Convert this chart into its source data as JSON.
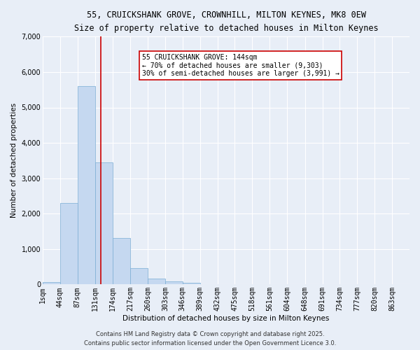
{
  "title1": "55, CRUICKSHANK GROVE, CROWNHILL, MILTON KEYNES, MK8 0EW",
  "title2": "Size of property relative to detached houses in Milton Keynes",
  "xlabel": "Distribution of detached houses by size in Milton Keynes",
  "ylabel": "Number of detached properties",
  "bar_color": "#c5d8f0",
  "bar_edge_color": "#7aadd4",
  "background_color": "#e8eef7",
  "grid_color": "#ffffff",
  "bin_labels": [
    "1sqm",
    "44sqm",
    "87sqm",
    "131sqm",
    "174sqm",
    "217sqm",
    "260sqm",
    "303sqm",
    "346sqm",
    "389sqm",
    "432sqm",
    "475sqm",
    "518sqm",
    "561sqm",
    "604sqm",
    "648sqm",
    "691sqm",
    "734sqm",
    "777sqm",
    "820sqm",
    "863sqm"
  ],
  "bin_edges": [
    1,
    44,
    87,
    131,
    174,
    217,
    260,
    303,
    346,
    389,
    432,
    475,
    518,
    561,
    604,
    648,
    691,
    734,
    777,
    820,
    863
  ],
  "bar_heights": [
    75,
    2300,
    5600,
    3450,
    1320,
    470,
    160,
    80,
    40,
    5,
    0,
    0,
    0,
    0,
    0,
    0,
    0,
    0,
    0,
    0
  ],
  "ylim": [
    0,
    7000
  ],
  "yticks": [
    0,
    1000,
    2000,
    3000,
    4000,
    5000,
    6000,
    7000
  ],
  "property_size": 144,
  "red_line_color": "#cc0000",
  "annotation_text": "55 CRUICKSHANK GROVE: 144sqm\n← 70% of detached houses are smaller (9,303)\n30% of semi-detached houses are larger (3,991) →",
  "annotation_box_color": "#ffffff",
  "annotation_edge_color": "#cc0000",
  "footer1": "Contains HM Land Registry data © Crown copyright and database right 2025.",
  "footer2": "Contains public sector information licensed under the Open Government Licence 3.0."
}
